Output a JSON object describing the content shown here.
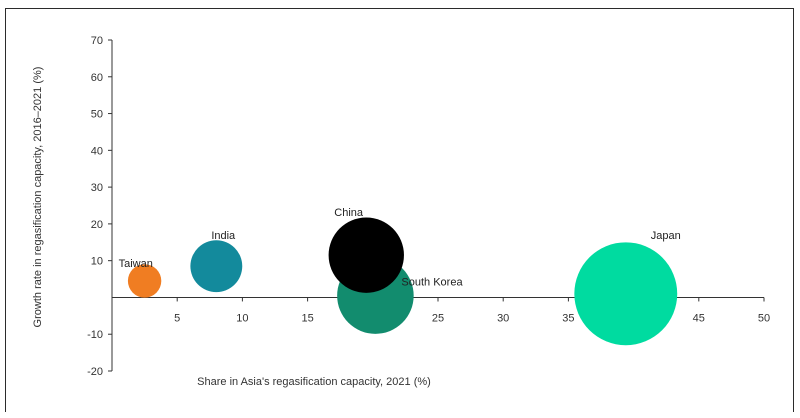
{
  "chart_data": {
    "type": "scatter",
    "title": "",
    "xlabel": "Share in Asia's regasification  capacity, 2021 (%)",
    "ylabel": "Growth rate in regasification  capacity, 2016–2021 (%)",
    "xlim": [
      0,
      50
    ],
    "ylim": [
      -20,
      70
    ],
    "x_ticks": [
      5,
      10,
      15,
      20,
      25,
      30,
      35,
      40,
      45,
      50
    ],
    "y_ticks": [
      -20,
      -10,
      10,
      20,
      30,
      40,
      50,
      60,
      70
    ],
    "grid": false,
    "legend": "none",
    "points": [
      {
        "label": "Taiwan",
        "x": 2.5,
        "y": 4.5,
        "size": 2.5,
        "color": "#f07d22"
      },
      {
        "label": "India",
        "x": 8,
        "y": 8.5,
        "size": 8,
        "color": "#138a9c"
      },
      {
        "label": "South Korea",
        "x": 20.2,
        "y": 0.5,
        "size": 20.2,
        "color": "#128c6e"
      },
      {
        "label": "China",
        "x": 19.5,
        "y": 11.5,
        "size": 19.5,
        "color": "#000000"
      },
      {
        "label": "Japan",
        "x": 39.4,
        "y": 1,
        "size": 39.4,
        "color": "#00dba0"
      }
    ]
  }
}
